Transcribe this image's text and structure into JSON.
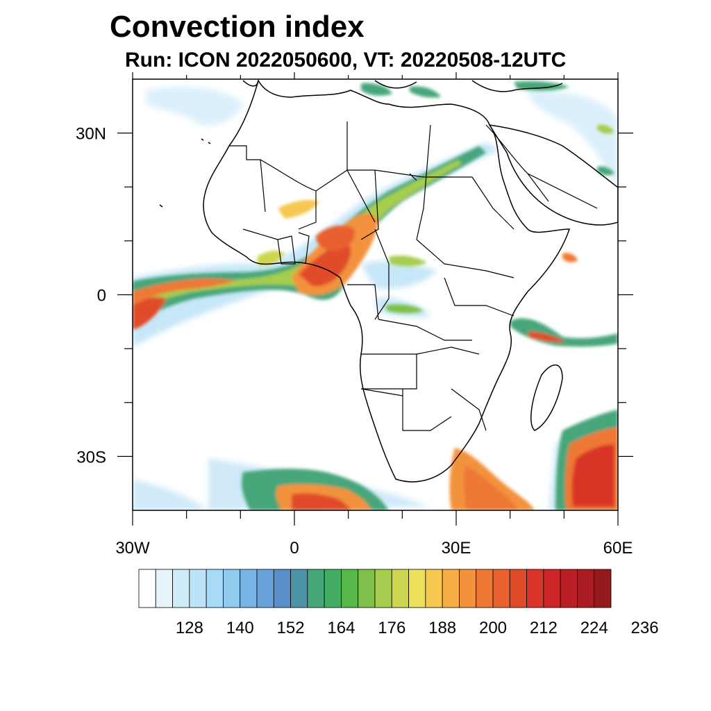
{
  "title": "Convection index",
  "subtitle": "Run: ICON 2022050600,  VT: 20220508-12UTC",
  "map": {
    "lon_range": [
      -30,
      60
    ],
    "lat_range": [
      -40,
      40
    ],
    "lon_ticks": [
      {
        "lon": -30,
        "label": "30W"
      },
      {
        "lon": 0,
        "label": "0"
      },
      {
        "lon": 30,
        "label": "30E"
      },
      {
        "lon": 60,
        "label": "60E"
      }
    ],
    "lat_ticks": [
      {
        "lat": 30,
        "label": "30N"
      },
      {
        "lat": 0,
        "label": "0"
      },
      {
        "lat": -30,
        "label": "30S"
      }
    ],
    "minor_lon": [
      -20,
      -10,
      10,
      20,
      40,
      50
    ],
    "minor_lat": [
      20,
      10,
      -10,
      -20
    ]
  },
  "colorbar": {
    "colors": [
      "#ffffff",
      "#e8f4fc",
      "#d0ebf8",
      "#bde3f7",
      "#a6daf6",
      "#8fcaef",
      "#79b4e6",
      "#6aa3dc",
      "#5a8fc9",
      "#4c94a6",
      "#46a67a",
      "#42ad63",
      "#55b848",
      "#7ec04a",
      "#a6cd4e",
      "#cdd650",
      "#ede05a",
      "#f6c84f",
      "#f7ae45",
      "#f3923d",
      "#ee7835",
      "#e8612e",
      "#e04b2a",
      "#d93528",
      "#cc2427",
      "#bb1f26",
      "#a81c22",
      "#951a1d"
    ],
    "labels": [
      "128",
      "140",
      "152",
      "164",
      "176",
      "188",
      "200",
      "212",
      "224",
      "236"
    ]
  }
}
